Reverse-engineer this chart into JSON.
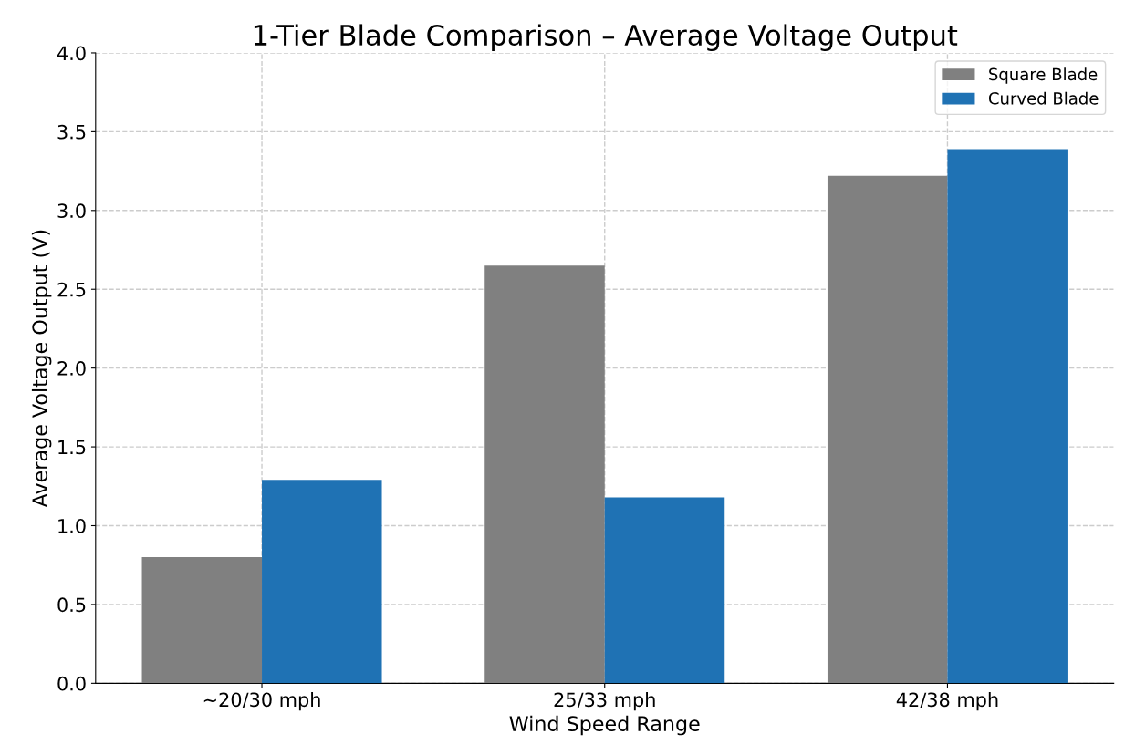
{
  "chart_data": {
    "type": "bar",
    "title": "1-Tier Blade Comparison – Average Voltage Output",
    "xlabel": "Wind Speed Range",
    "ylabel": "Average Voltage Output (V)",
    "categories": [
      "~20/30 mph",
      "25/33 mph",
      "42/38 mph"
    ],
    "series": [
      {
        "name": "Square Blade",
        "color": "#808080",
        "values": [
          0.8,
          2.65,
          3.22
        ]
      },
      {
        "name": "Curved Blade",
        "color": "#1f72b4",
        "values": [
          1.29,
          1.18,
          3.39
        ]
      }
    ],
    "ylim": [
      0,
      4.0
    ],
    "yticks": [
      {
        "value": 0,
        "label": "0.0"
      },
      0.5,
      {
        "value": 1,
        "label": "1.0"
      },
      1.5,
      {
        "value": 2,
        "label": "2.0"
      },
      2.5,
      {
        "value": 3,
        "label": "3.0"
      },
      3.5,
      {
        "value": 4,
        "label": "4.0"
      }
    ],
    "grid": true,
    "legend": "top right"
  }
}
